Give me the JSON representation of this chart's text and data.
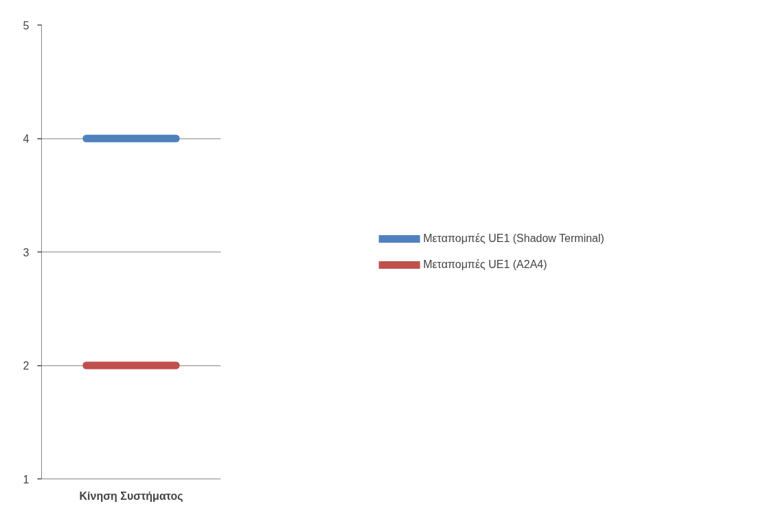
{
  "chart_data": {
    "type": "line",
    "xlabel": "Κίνηση Συστήματος",
    "categories": [
      null,
      null
    ],
    "series": [
      {
        "name": "Μεταπομπές UE1 (Shadow Terminal)",
        "color": "#4f81bd",
        "values": [
          4,
          4
        ]
      },
      {
        "name": "Μεταπομπές UE1 (A2A4)",
        "color": "#c0504d",
        "values": [
          2,
          2
        ]
      }
    ],
    "ylim": [
      1,
      5
    ],
    "yticks": [
      1,
      2,
      3,
      4,
      5
    ],
    "grid": "y",
    "legend": "right",
    "tick_labels": "y",
    "marker": "none",
    "line_style": "solid"
  }
}
